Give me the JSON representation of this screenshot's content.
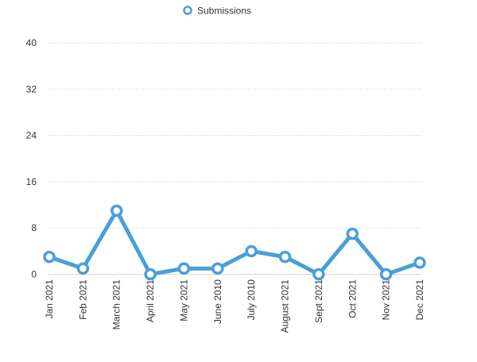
{
  "chart_data": {
    "type": "line",
    "categories": [
      "Jan 2021",
      "Feb 2021",
      "March 2021",
      "April 2021",
      "May 2021",
      "June 2010",
      "July 2010",
      "August 2021",
      "Sept 2021",
      "Oct 2021",
      "Nov 2021",
      "Dec 2021"
    ],
    "series": [
      {
        "name": "Submissions",
        "values": [
          3,
          1,
          11,
          0,
          1,
          1,
          4,
          3,
          0,
          7,
          0,
          2
        ],
        "color": "#4a9fd8"
      }
    ],
    "yticks": [
      0,
      8,
      16,
      24,
      32,
      40
    ],
    "ylim": [
      0,
      40
    ],
    "grid": true,
    "legend_position": "top-center"
  }
}
